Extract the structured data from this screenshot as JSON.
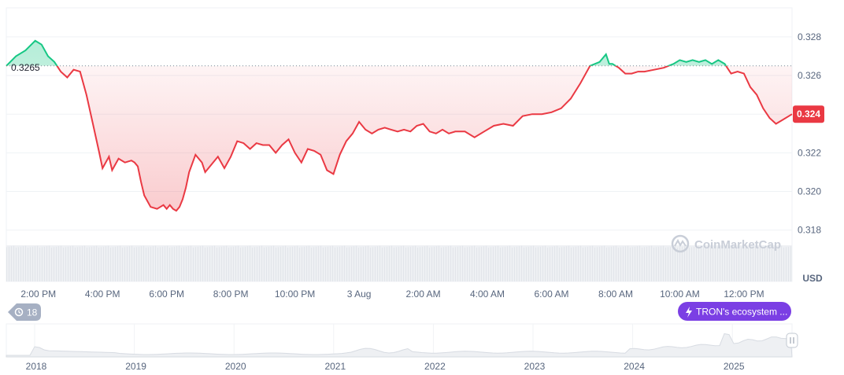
{
  "chart_data": {
    "type": "line",
    "currency_label": "USD",
    "reference_price": 0.3265,
    "reference_label": "0.3265",
    "current_price_label": "0.324",
    "ylim": [
      0.3175,
      0.3295
    ],
    "y_ticks": [
      "0.328",
      "0.326",
      "0.324",
      "0.322",
      "0.320",
      "0.318"
    ],
    "y_tick_values": [
      0.328,
      0.326,
      0.324,
      0.322,
      0.32,
      0.318
    ],
    "x_ticks": [
      "2:00 PM",
      "4:00 PM",
      "6:00 PM",
      "8:00 PM",
      "10:00 PM",
      "3 Aug",
      "2:00 AM",
      "4:00 AM",
      "6:00 AM",
      "8:00 AM",
      "10:00 AM",
      "12:00 PM"
    ],
    "x_tick_hours": [
      14,
      16,
      18,
      20,
      22,
      24,
      26,
      28,
      30,
      32,
      34,
      36
    ],
    "xlim_hours": [
      13.0,
      37.5
    ],
    "grid": true,
    "colors": {
      "up": "#16c784",
      "down": "#ea3943",
      "axis_text": "#58667e",
      "pill": "#7b3fe4",
      "history_badge": "#a6b0c3"
    },
    "x": [
      13.0,
      13.3,
      13.6,
      13.9,
      14.1,
      14.3,
      14.5,
      14.7,
      14.9,
      15.1,
      15.3,
      15.5,
      15.7,
      15.9,
      16.0,
      16.2,
      16.3,
      16.5,
      16.7,
      16.9,
      17.0,
      17.1,
      17.2,
      17.3,
      17.5,
      17.7,
      17.9,
      18.0,
      18.1,
      18.2,
      18.3,
      18.4,
      18.5,
      18.6,
      18.7,
      18.9,
      19.1,
      19.2,
      19.4,
      19.6,
      19.8,
      20.0,
      20.2,
      20.4,
      20.6,
      20.8,
      21.0,
      21.2,
      21.4,
      21.6,
      21.8,
      22.0,
      22.2,
      22.4,
      22.6,
      22.8,
      23.0,
      23.2,
      23.4,
      23.6,
      23.8,
      24.0,
      24.2,
      24.4,
      24.6,
      24.8,
      25.0,
      25.2,
      25.4,
      25.6,
      25.8,
      26.0,
      26.2,
      26.4,
      26.6,
      26.8,
      27.0,
      27.3,
      27.6,
      27.9,
      28.2,
      28.5,
      28.8,
      29.1,
      29.4,
      29.7,
      30.0,
      30.3,
      30.6,
      30.9,
      31.2,
      31.5,
      31.7,
      31.8,
      31.9,
      32.0,
      32.1,
      32.3,
      32.5,
      32.7,
      32.9,
      33.2,
      33.5,
      33.8,
      34.0,
      34.2,
      34.4,
      34.6,
      34.8,
      35.0,
      35.2,
      35.4,
      35.6,
      35.8,
      36.0,
      36.2,
      36.4,
      36.6,
      36.8,
      37.0,
      37.2,
      37.5
    ],
    "y": [
      0.3265,
      0.327,
      0.3273,
      0.3278,
      0.3276,
      0.327,
      0.3267,
      0.3262,
      0.3259,
      0.3263,
      0.3262,
      0.325,
      0.3235,
      0.322,
      0.3212,
      0.3218,
      0.3211,
      0.3217,
      0.3215,
      0.3216,
      0.3215,
      0.3213,
      0.3205,
      0.3198,
      0.3192,
      0.3191,
      0.3193,
      0.3191,
      0.3193,
      0.3191,
      0.319,
      0.3192,
      0.3196,
      0.3202,
      0.321,
      0.3219,
      0.3215,
      0.321,
      0.3214,
      0.3218,
      0.3212,
      0.3218,
      0.3226,
      0.3225,
      0.3222,
      0.3225,
      0.3224,
      0.3224,
      0.322,
      0.3224,
      0.3227,
      0.322,
      0.3215,
      0.3222,
      0.3221,
      0.3219,
      0.3211,
      0.3209,
      0.3219,
      0.3226,
      0.323,
      0.3236,
      0.3232,
      0.323,
      0.3232,
      0.3233,
      0.3232,
      0.3231,
      0.3232,
      0.3231,
      0.3234,
      0.3235,
      0.3231,
      0.323,
      0.3232,
      0.323,
      0.3231,
      0.3231,
      0.3228,
      0.3231,
      0.3234,
      0.3235,
      0.3234,
      0.3239,
      0.324,
      0.324,
      0.3241,
      0.3243,
      0.3248,
      0.3256,
      0.3265,
      0.3267,
      0.3271,
      0.3266,
      0.3266,
      0.3265,
      0.3264,
      0.3261,
      0.3261,
      0.3262,
      0.3262,
      0.3263,
      0.3264,
      0.3266,
      0.3268,
      0.3267,
      0.3268,
      0.3267,
      0.3268,
      0.3266,
      0.3268,
      0.3266,
      0.3261,
      0.3262,
      0.3261,
      0.3254,
      0.325,
      0.3243,
      0.3238,
      0.3235,
      0.3237,
      0.324
    ]
  },
  "history": {
    "count_label": "18"
  },
  "event_pill": {
    "label": "TRON's ecosystem ..."
  },
  "navigator": {
    "years": [
      "2018",
      "2019",
      "2020",
      "2021",
      "2022",
      "2023",
      "2024",
      "2025"
    ]
  },
  "watermark": {
    "text": "CoinMarketCap"
  }
}
